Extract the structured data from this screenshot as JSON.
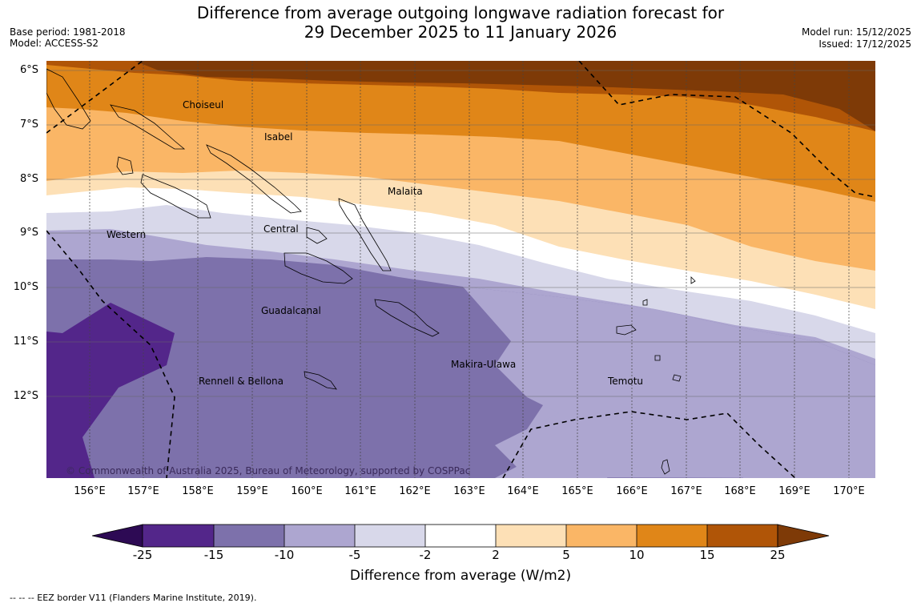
{
  "header": {
    "title_line1": "Difference from average outgoing longwave radiation forecast for",
    "title_line2": "29 December 2025 to 11 January 2026",
    "base_period": "Base period: 1981-2018",
    "model": "Model: ACCESS-S2",
    "model_run": "Model run: 15/12/2025",
    "issued": "Issued: 17/12/2025"
  },
  "map": {
    "lat_labels": [
      "6°S",
      "7°S",
      "8°S",
      "9°S",
      "10°S",
      "11°S",
      "12°S"
    ],
    "lon_labels": [
      "156°E",
      "157°E",
      "158°E",
      "159°E",
      "160°E",
      "161°E",
      "162°E",
      "163°E",
      "164°E",
      "165°E",
      "166°E",
      "167°E",
      "168°E",
      "169°E",
      "170°E"
    ],
    "regions": {
      "choiseul": "Choiseul",
      "isabel": "Isabel",
      "malaita": "Malaita",
      "central": "Central",
      "western": "Western",
      "guadalcanal": "Guadalcanal",
      "makira": "Makira-Ulawa",
      "rennell": "Rennell & Bellona",
      "temotu": "Temotu"
    },
    "copyright": "© Commonwealth of Australia 2025, Bureau of Meteorology, supported by COSPPac"
  },
  "colorbar": {
    "ticks": [
      "-25",
      "-15",
      "-10",
      "-5",
      "-2",
      "2",
      "5",
      "10",
      "15",
      "25"
    ],
    "colors": [
      "#2d0a54",
      "#53268a",
      "#7d71ab",
      "#ada6d0",
      "#d8d8ea",
      "#ffffff",
      "#fde0b6",
      "#fab666",
      "#e08618",
      "#b05507",
      "#7e3a07"
    ],
    "label": "Difference from average (W/m2)"
  },
  "footer": {
    "eez_note": "--  --  -- EEZ border V11 (Flanders Marine Institute, 2019)."
  }
}
